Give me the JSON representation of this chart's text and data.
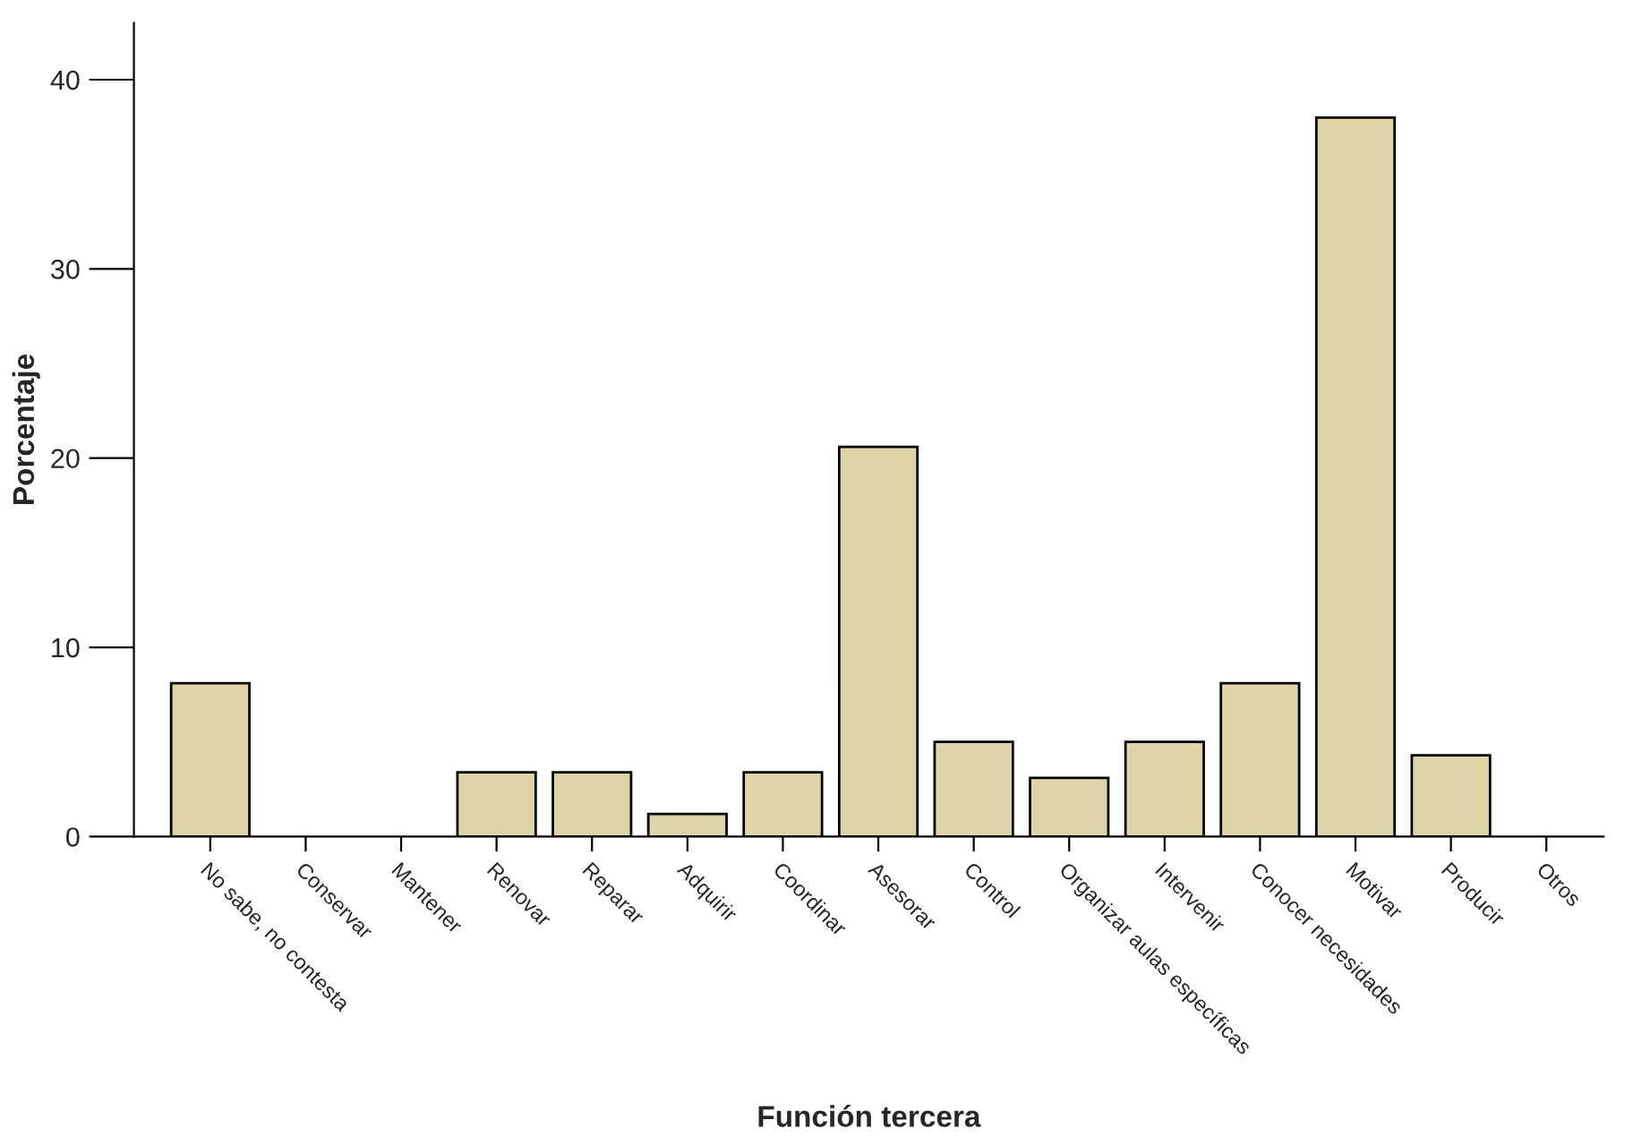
{
  "chart_data": {
    "type": "bar",
    "xlabel": "Función tercera",
    "ylabel": "Porcentaje",
    "categories": [
      "No sabe, no contesta",
      "Conservar",
      "Mantener",
      "Renovar",
      "Reparar",
      "Adquirir",
      "Coordinar",
      "Asesorar",
      "Control",
      "Organizar aulas específicas",
      "Intervenir",
      "Conocer necesidades",
      "Motivar",
      "Producir",
      "Otros"
    ],
    "values": [
      8.1,
      0,
      0,
      3.4,
      3.4,
      1.2,
      3.4,
      20.6,
      5.0,
      3.1,
      5.0,
      8.1,
      38.0,
      4.3,
      0
    ],
    "color": "#ddd5a8",
    "ylim": [
      0,
      43
    ],
    "yticks": [
      0,
      10,
      20,
      30,
      40
    ],
    "grid": false,
    "legend": false
  }
}
